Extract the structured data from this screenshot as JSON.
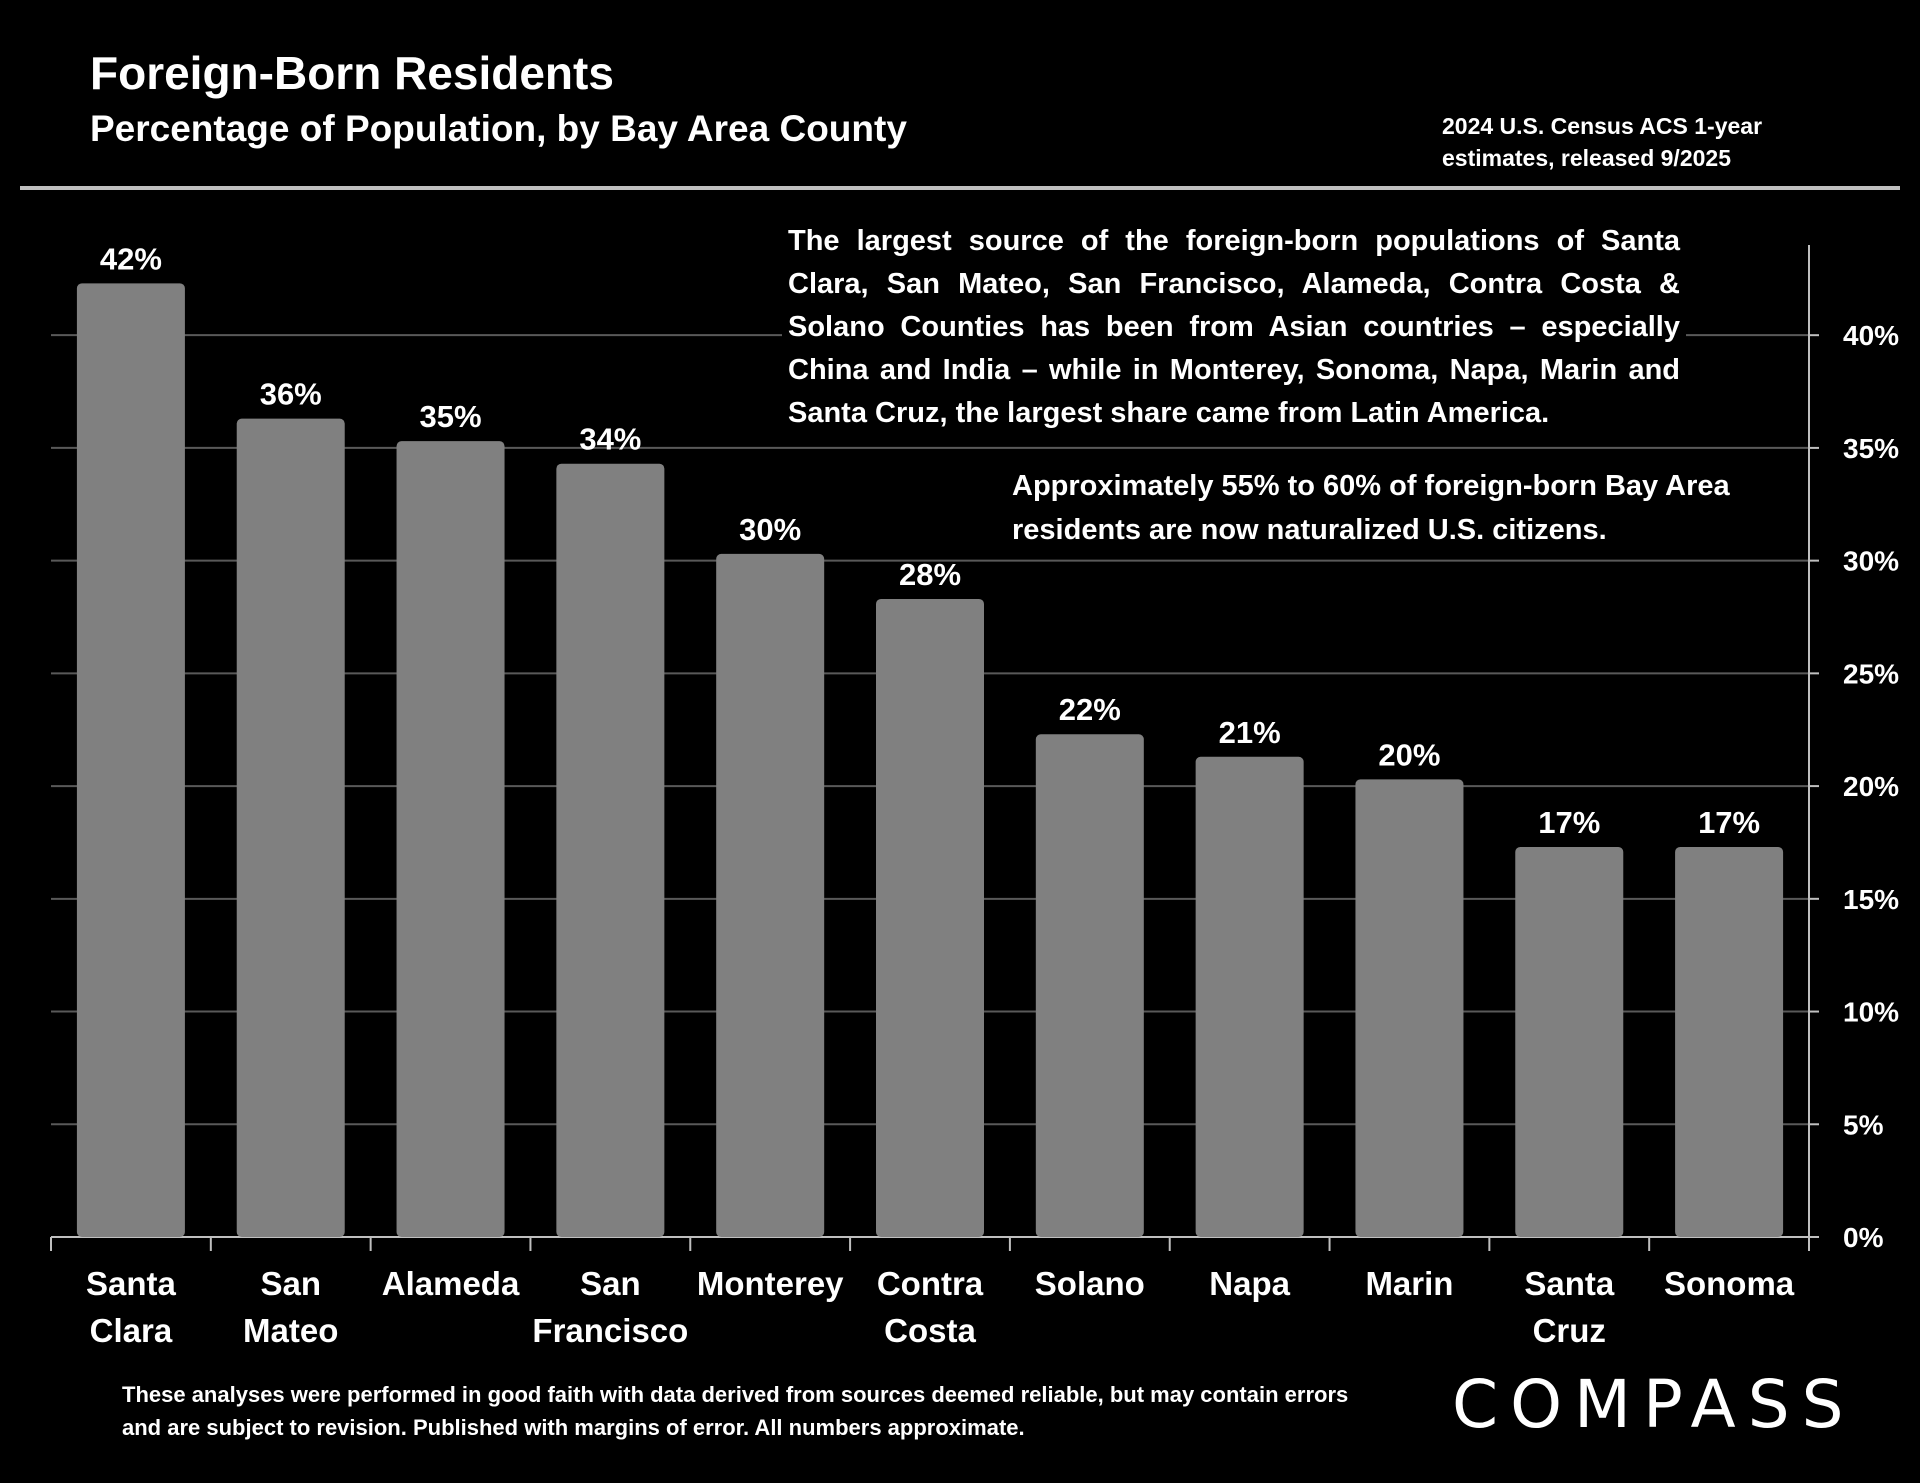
{
  "header": {
    "title": "Foreign-Born Residents",
    "subtitle": "Percentage of Population, by Bay Area County",
    "source_note": "2024 U.S. Census ACS 1-year estimates, released 9/2025"
  },
  "annotations": {
    "main": "The largest source of the foreign-born populations of Santa Clara, San Mateo, San Francisco, Alameda, Contra Costa & Solano Counties has been from Asian countries – especially China and India – while in Monterey, Sonoma, Napa, Marin and Santa Cruz, the largest share came from Latin America.",
    "secondary": "Approximately 55% to 60% of foreign-born Bay Area residents are now naturalized U.S. citizens."
  },
  "footer": {
    "disclaimer": "These analyses were performed in good faith with data derived from sources deemed reliable, but may contain errors and are subject to revision.  Published with margins of error. All numbers approximate.",
    "logo_text": "COMPASS"
  },
  "colors": {
    "background": "#000000",
    "bar": "#808080",
    "gridline": "#595959",
    "text": "#ffffff"
  },
  "chart_data": {
    "type": "bar",
    "categories": [
      [
        "Santa",
        "Clara"
      ],
      [
        "San",
        "Mateo"
      ],
      [
        "Alameda"
      ],
      [
        "San",
        "Francisco"
      ],
      [
        "Monterey"
      ],
      [
        "Contra",
        "Costa"
      ],
      [
        "Solano"
      ],
      [
        "Napa"
      ],
      [
        "Marin"
      ],
      [
        "Santa",
        "Cruz"
      ],
      [
        "Sonoma"
      ]
    ],
    "values": [
      42.3,
      36.3,
      35.3,
      34.3,
      30.3,
      28.3,
      22.3,
      21.3,
      20.3,
      17.3,
      17.3
    ],
    "data_labels": [
      "42%",
      "36%",
      "35%",
      "34%",
      "30%",
      "28%",
      "22%",
      "21%",
      "20%",
      "17%",
      "17%"
    ],
    "y_axis_position": "right",
    "ylim": [
      0,
      44
    ],
    "yticks": [
      0,
      5,
      10,
      15,
      20,
      25,
      30,
      35,
      40
    ],
    "ytick_labels": [
      "0%",
      "5%",
      "10%",
      "15%",
      "20%",
      "25%",
      "30%",
      "35%",
      "40%"
    ],
    "grid": true,
    "legend": "none"
  }
}
